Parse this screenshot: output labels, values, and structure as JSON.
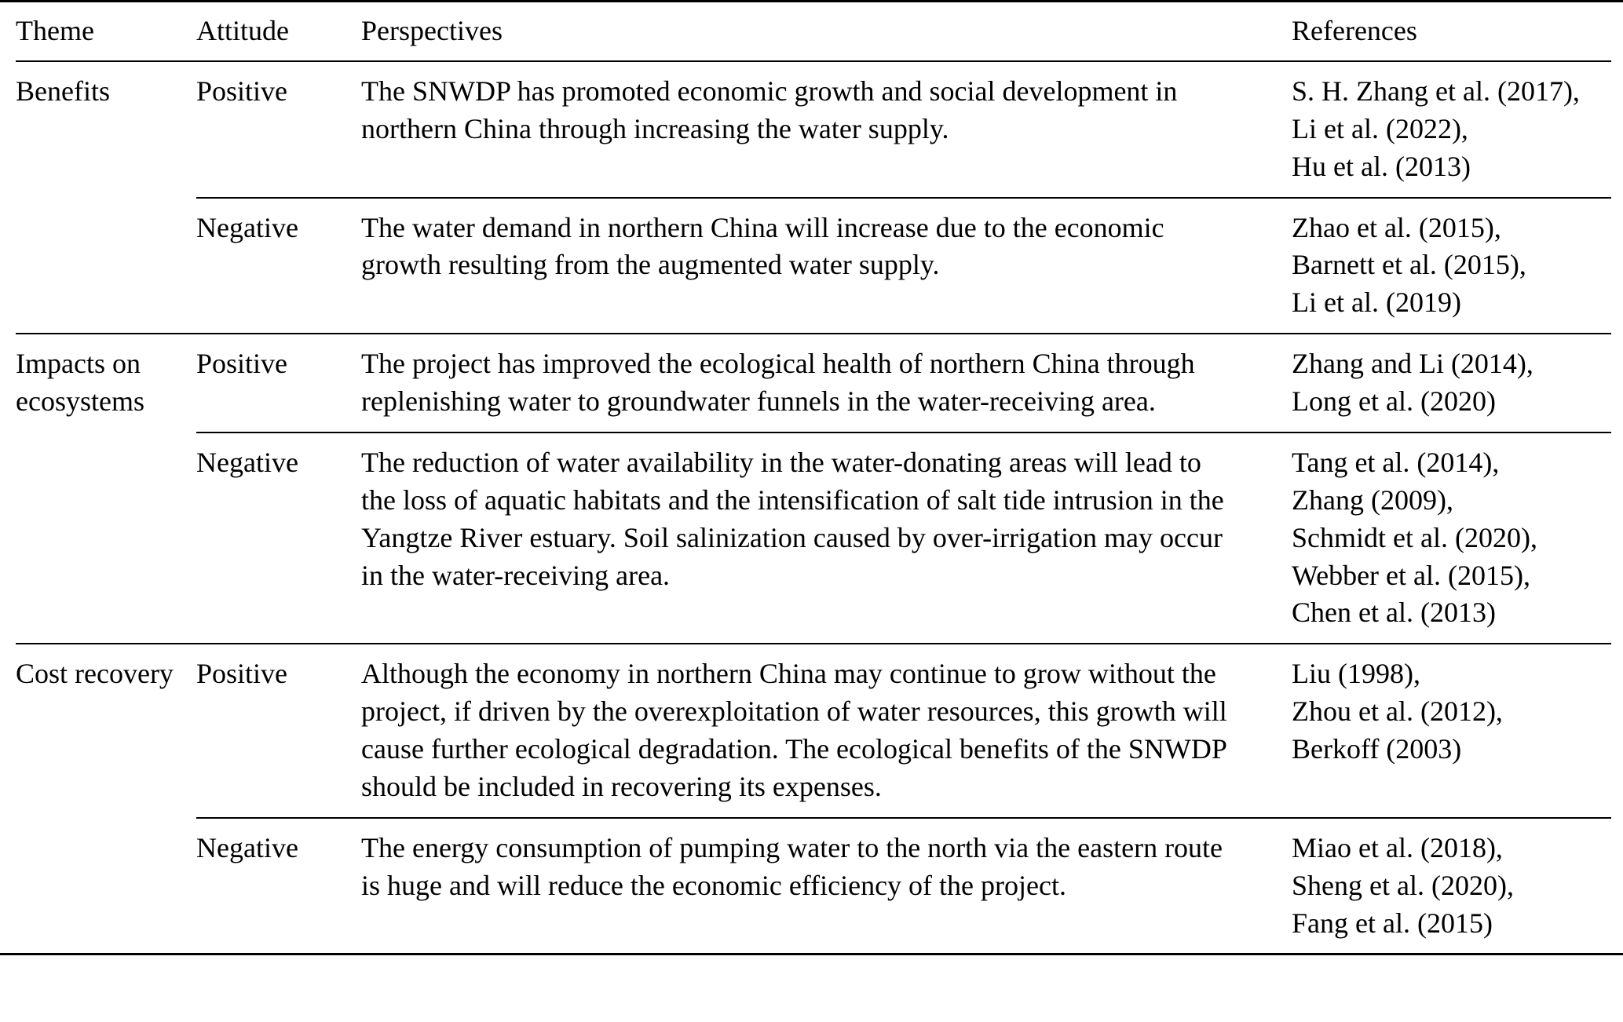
{
  "table": {
    "headers": {
      "theme": "Theme",
      "attitude": "Attitude",
      "perspectives": "Perspectives",
      "references": "References"
    },
    "groups": [
      {
        "theme": "Benefits",
        "rows": [
          {
            "attitude": "Positive",
            "perspective": "The SNWDP has promoted economic growth and social development in northern China through increasing the water supply.",
            "references": "S. H. Zhang et al. (2017),\nLi et al. (2022),\nHu et al. (2013)"
          },
          {
            "attitude": "Negative",
            "perspective": "The water demand in northern China will increase due to the economic growth resulting from the augmented water supply.",
            "references": "Zhao et al. (2015),\nBarnett et al. (2015),\nLi et al. (2019)"
          }
        ]
      },
      {
        "theme": "Impacts on ecosystems",
        "rows": [
          {
            "attitude": "Positive",
            "perspective": "The project has improved the ecological health of northern China through replenishing water to groundwater funnels in the water-receiving area.",
            "references": "Zhang and Li (2014),\nLong et al. (2020)"
          },
          {
            "attitude": "Negative",
            "perspective": "The reduction of water availability in the water-donating areas will lead to the loss of aquatic habitats and the intensification of salt tide intrusion in the Yangtze River estuary. Soil salinization caused by over-irrigation may occur in the water-receiving area.",
            "references": "Tang et al. (2014),\nZhang (2009),\nSchmidt et al. (2020),\nWebber et al. (2015),\nChen et al. (2013)"
          }
        ]
      },
      {
        "theme": "Cost recovery",
        "rows": [
          {
            "attitude": "Positive",
            "perspective": "Although the economy in northern China may continue to grow without the project, if driven by the overexploitation of water resources, this growth will cause further ecological degradation. The ecological benefits of the SNWDP should be included in recovering its expenses.",
            "references": "Liu (1998),\nZhou et al. (2012),\nBerkoff (2003)"
          },
          {
            "attitude": "Negative",
            "perspective": "The energy consumption of pumping water to the north via the eastern route is huge and will reduce the economic efficiency of the project.",
            "references": "Miao et al. (2018),\nSheng et al. (2020),\nFang et al. (2015)"
          }
        ]
      }
    ]
  }
}
